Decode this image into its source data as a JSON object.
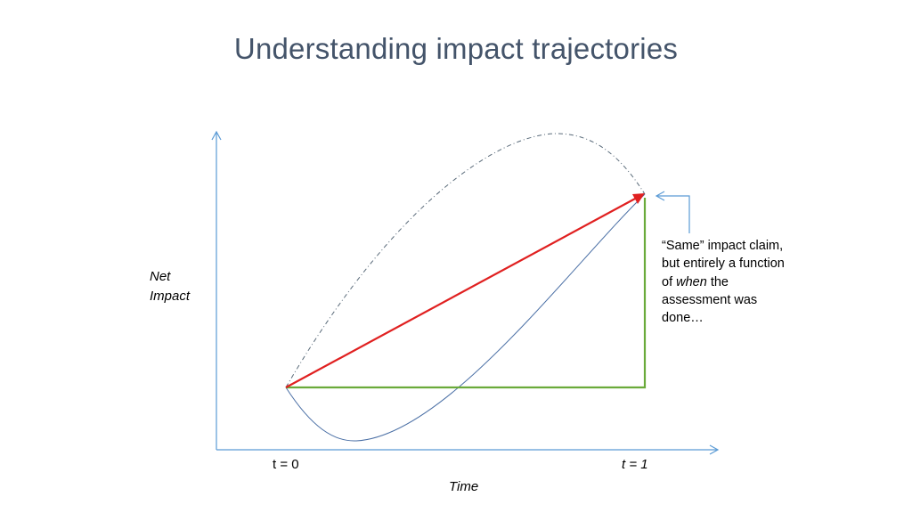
{
  "slide": {
    "title": "Understanding impact trajectories"
  },
  "axes": {
    "y_label_line1": "Net",
    "y_label_line2": "Impact",
    "x_label": "Time",
    "t0_label": "t = 0",
    "t1_label": "t = 1"
  },
  "callout": {
    "text_before": "“Same” impact claim, but entirely a function of ",
    "text_emphasis": "when",
    "text_after": " the assessment was done…"
  },
  "colors": {
    "title": "#44546a",
    "axis": "#5b9bd5",
    "red_arrow": "#e02020",
    "green_path": "#6aaa3a",
    "lower_curve": "#4a6fa5",
    "upper_curve": "#5a6b7a",
    "callout_pointer": "#5b9bd5"
  }
}
